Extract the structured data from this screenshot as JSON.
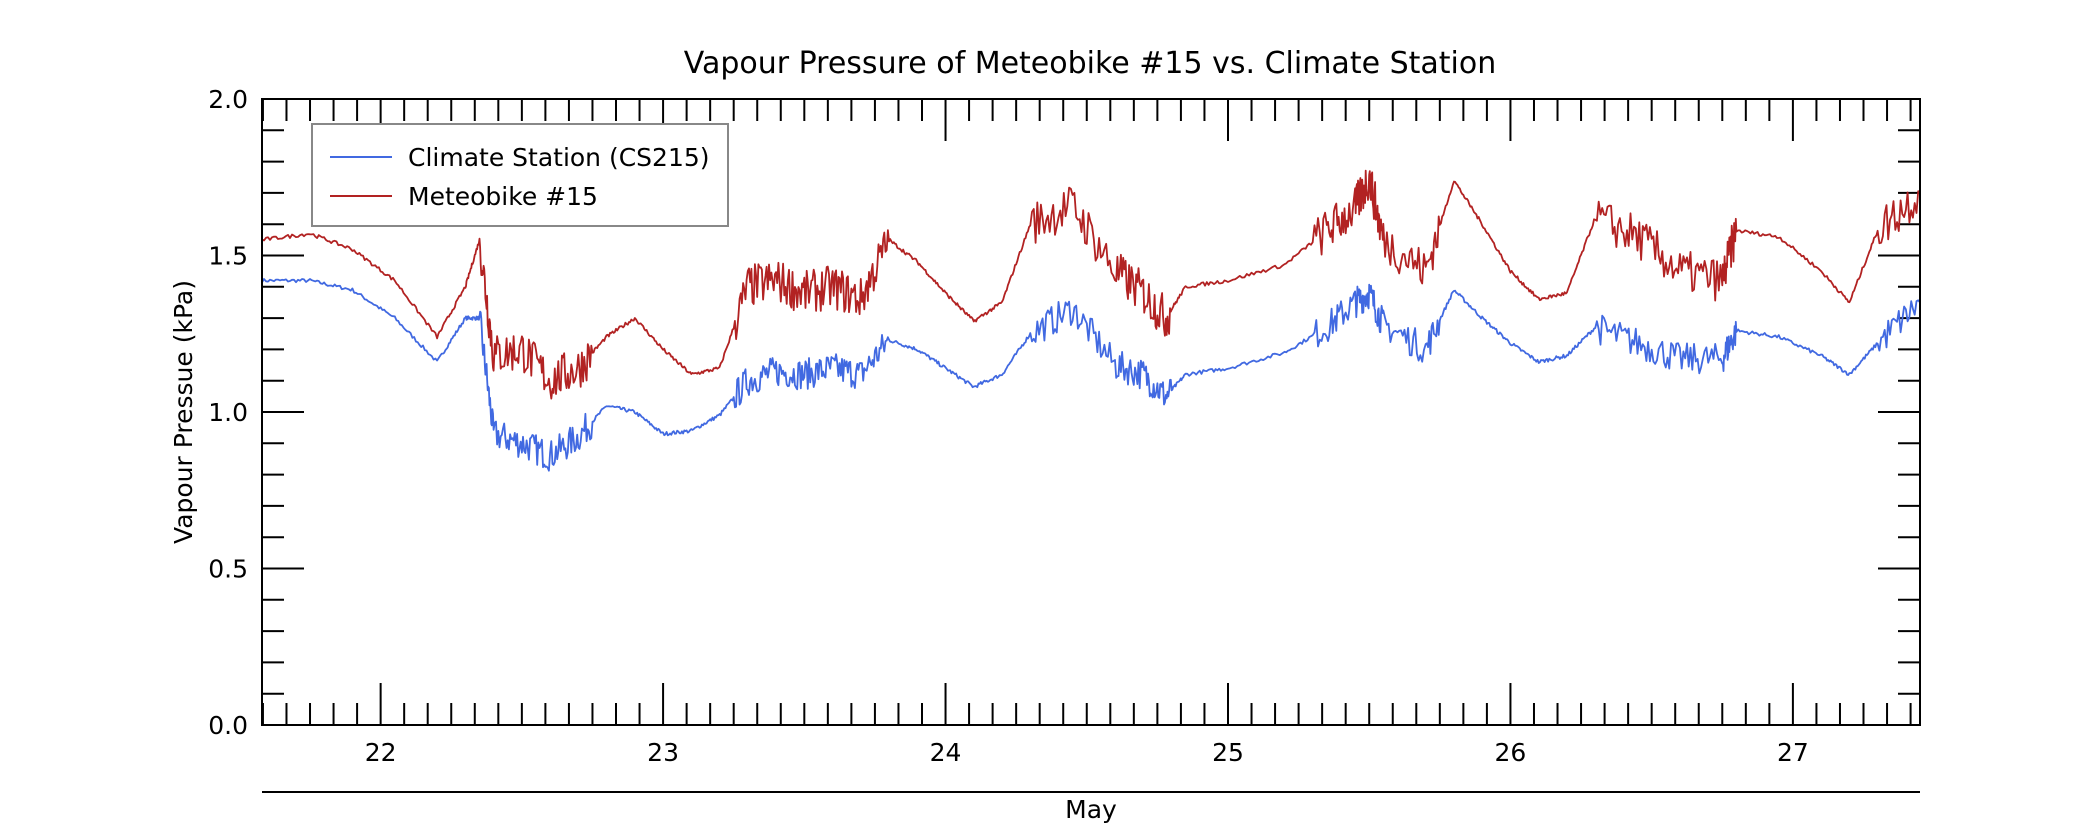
{
  "chart_data": {
    "type": "line",
    "title": "Vapour Pressure of Meteobike #15 vs. Climate Station",
    "xlabel": "May",
    "ylabel": "Vapour Pressue (kPa)",
    "ylim": [
      0,
      2.0
    ],
    "xlim": [
      21.58,
      27.45
    ],
    "yticks": [
      "0.0",
      "0.5",
      "1.0",
      "1.5",
      "2.0"
    ],
    "xticks": [
      "22",
      "23",
      "24",
      "25",
      "26",
      "27"
    ],
    "legend_position": "top-left",
    "grid": false,
    "series": [
      {
        "name": "Climate Station (CS215)",
        "color": "#4169e1",
        "x": [
          21.58,
          21.75,
          21.9,
          22.05,
          22.2,
          22.3,
          22.35,
          22.4,
          22.5,
          22.6,
          22.7,
          22.8,
          22.9,
          23.0,
          23.1,
          23.2,
          23.3,
          23.4,
          23.5,
          23.6,
          23.7,
          23.8,
          23.9,
          24.0,
          24.1,
          24.2,
          24.3,
          24.45,
          24.6,
          24.7,
          24.78,
          24.85,
          25.0,
          25.2,
          25.35,
          25.45,
          25.5,
          25.55,
          25.7,
          25.8,
          25.9,
          26.0,
          26.1,
          26.2,
          26.3,
          26.45,
          26.6,
          26.75,
          26.8,
          26.95,
          27.1,
          27.2,
          27.3,
          27.45
        ],
        "y": [
          1.42,
          1.42,
          1.39,
          1.3,
          1.16,
          1.3,
          1.3,
          0.93,
          0.9,
          0.86,
          0.92,
          1.02,
          1.0,
          0.93,
          0.94,
          0.99,
          1.1,
          1.13,
          1.12,
          1.14,
          1.12,
          1.23,
          1.2,
          1.14,
          1.08,
          1.12,
          1.25,
          1.33,
          1.15,
          1.12,
          1.05,
          1.12,
          1.14,
          1.19,
          1.27,
          1.35,
          1.38,
          1.28,
          1.2,
          1.39,
          1.3,
          1.22,
          1.16,
          1.18,
          1.27,
          1.22,
          1.17,
          1.17,
          1.26,
          1.24,
          1.18,
          1.12,
          1.22,
          1.35
        ]
      },
      {
        "name": "Meteobike #15",
        "color": "#b22222",
        "x": [
          21.58,
          21.75,
          21.9,
          22.05,
          22.2,
          22.3,
          22.35,
          22.4,
          22.5,
          22.6,
          22.7,
          22.8,
          22.9,
          23.0,
          23.1,
          23.2,
          23.3,
          23.4,
          23.5,
          23.6,
          23.7,
          23.8,
          23.9,
          24.0,
          24.1,
          24.2,
          24.3,
          24.45,
          24.6,
          24.7,
          24.78,
          24.85,
          25.0,
          25.2,
          25.35,
          25.45,
          25.5,
          25.55,
          25.7,
          25.8,
          25.9,
          26.0,
          26.1,
          26.2,
          26.3,
          26.45,
          26.6,
          26.75,
          26.8,
          26.95,
          27.1,
          27.2,
          27.3,
          27.45
        ],
        "y": [
          1.55,
          1.57,
          1.52,
          1.42,
          1.24,
          1.4,
          1.55,
          1.18,
          1.2,
          1.1,
          1.14,
          1.24,
          1.3,
          1.2,
          1.12,
          1.14,
          1.4,
          1.42,
          1.38,
          1.4,
          1.36,
          1.55,
          1.48,
          1.38,
          1.29,
          1.35,
          1.6,
          1.66,
          1.45,
          1.38,
          1.3,
          1.4,
          1.42,
          1.47,
          1.58,
          1.65,
          1.75,
          1.55,
          1.45,
          1.74,
          1.6,
          1.45,
          1.36,
          1.38,
          1.62,
          1.56,
          1.45,
          1.42,
          1.58,
          1.56,
          1.45,
          1.35,
          1.58,
          1.7
        ]
      }
    ]
  }
}
